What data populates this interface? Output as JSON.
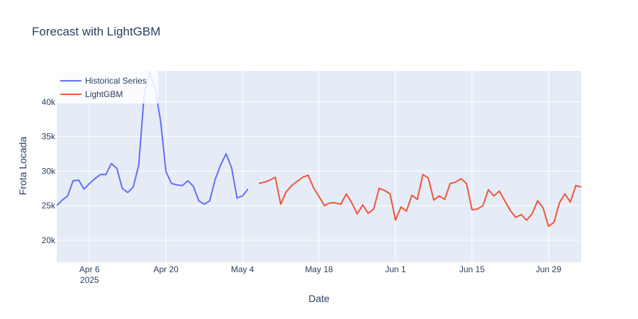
{
  "chart_data": {
    "type": "line",
    "title": "Forecast with LightGBM",
    "xlabel": "Date",
    "ylabel": "Frota Locada",
    "x_axis": {
      "type": "date",
      "range": [
        "2025-03-31",
        "2025-07-05"
      ]
    },
    "ylim": [
      16800,
      44500
    ],
    "x_ticks": [
      {
        "date": "2025-04-06",
        "label": "Apr 6",
        "sublabel": "2025"
      },
      {
        "date": "2025-04-20",
        "label": "Apr 20",
        "sublabel": ""
      },
      {
        "date": "2025-05-04",
        "label": "May 4",
        "sublabel": ""
      },
      {
        "date": "2025-05-18",
        "label": "May 18",
        "sublabel": ""
      },
      {
        "date": "2025-06-01",
        "label": "Jun 1",
        "sublabel": ""
      },
      {
        "date": "2025-06-15",
        "label": "Jun 15",
        "sublabel": ""
      },
      {
        "date": "2025-06-29",
        "label": "Jun 29",
        "sublabel": ""
      }
    ],
    "y_ticks": [
      {
        "value": 20000,
        "label": "20k"
      },
      {
        "value": 25000,
        "label": "25k"
      },
      {
        "value": 30000,
        "label": "30k"
      },
      {
        "value": 35000,
        "label": "35k"
      },
      {
        "value": 40000,
        "label": "40k"
      }
    ],
    "grid": true,
    "legend_position": "top-left",
    "colors": {
      "plot_bg": "#e5ecf6",
      "grid": "#ffffff",
      "historical": "#636efa",
      "forecast": "#ef553b"
    },
    "series": [
      {
        "name": "Historical Series",
        "color": "#636efa",
        "points": [
          [
            "2025-03-31",
            25000
          ],
          [
            "2025-04-01",
            25800
          ],
          [
            "2025-04-02",
            26400
          ],
          [
            "2025-04-03",
            28600
          ],
          [
            "2025-04-04",
            28700
          ],
          [
            "2025-04-05",
            27400
          ],
          [
            "2025-04-06",
            28200
          ],
          [
            "2025-04-07",
            28900
          ],
          [
            "2025-04-08",
            29500
          ],
          [
            "2025-04-09",
            29500
          ],
          [
            "2025-04-10",
            31100
          ],
          [
            "2025-04-11",
            30400
          ],
          [
            "2025-04-12",
            27500
          ],
          [
            "2025-04-13",
            26900
          ],
          [
            "2025-04-14",
            27700
          ],
          [
            "2025-04-15",
            30800
          ],
          [
            "2025-04-16",
            41000
          ],
          [
            "2025-04-17",
            44400
          ],
          [
            "2025-04-18",
            42000
          ],
          [
            "2025-04-19",
            37300
          ],
          [
            "2025-04-20",
            29900
          ],
          [
            "2025-04-21",
            28200
          ],
          [
            "2025-04-22",
            28000
          ],
          [
            "2025-04-23",
            27900
          ],
          [
            "2025-04-24",
            28600
          ],
          [
            "2025-04-25",
            27800
          ],
          [
            "2025-04-26",
            25700
          ],
          [
            "2025-04-27",
            25200
          ],
          [
            "2025-04-28",
            25700
          ],
          [
            "2025-04-29",
            28800
          ],
          [
            "2025-04-30",
            30900
          ],
          [
            "2025-05-01",
            32500
          ],
          [
            "2025-05-02",
            30500
          ],
          [
            "2025-05-03",
            26100
          ],
          [
            "2025-05-04",
            26400
          ],
          [
            "2025-05-05",
            27400
          ]
        ]
      },
      {
        "name": "LightGBM",
        "color": "#ef553b",
        "points": [
          [
            "2025-05-07",
            28200
          ],
          [
            "2025-05-08",
            28400
          ],
          [
            "2025-05-09",
            28700
          ],
          [
            "2025-05-10",
            29100
          ],
          [
            "2025-05-11",
            25200
          ],
          [
            "2025-05-12",
            27000
          ],
          [
            "2025-05-13",
            27900
          ],
          [
            "2025-05-14",
            28500
          ],
          [
            "2025-05-15",
            29100
          ],
          [
            "2025-05-16",
            29400
          ],
          [
            "2025-05-17",
            27600
          ],
          [
            "2025-05-18",
            26300
          ],
          [
            "2025-05-19",
            25000
          ],
          [
            "2025-05-20",
            25400
          ],
          [
            "2025-05-21",
            25400
          ],
          [
            "2025-05-22",
            25200
          ],
          [
            "2025-05-23",
            26700
          ],
          [
            "2025-05-24",
            25400
          ],
          [
            "2025-05-25",
            23800
          ],
          [
            "2025-05-26",
            25100
          ],
          [
            "2025-05-27",
            23900
          ],
          [
            "2025-05-28",
            24500
          ],
          [
            "2025-05-29",
            27500
          ],
          [
            "2025-05-30",
            27200
          ],
          [
            "2025-05-31",
            26700
          ],
          [
            "2025-06-01",
            22900
          ],
          [
            "2025-06-02",
            24800
          ],
          [
            "2025-06-03",
            24200
          ],
          [
            "2025-06-04",
            26500
          ],
          [
            "2025-06-05",
            25900
          ],
          [
            "2025-06-06",
            29500
          ],
          [
            "2025-06-07",
            29000
          ],
          [
            "2025-06-08",
            25800
          ],
          [
            "2025-06-09",
            26400
          ],
          [
            "2025-06-10",
            25900
          ],
          [
            "2025-06-11",
            28200
          ],
          [
            "2025-06-12",
            28400
          ],
          [
            "2025-06-13",
            28900
          ],
          [
            "2025-06-14",
            28200
          ],
          [
            "2025-06-15",
            24400
          ],
          [
            "2025-06-16",
            24500
          ],
          [
            "2025-06-17",
            25000
          ],
          [
            "2025-06-18",
            27300
          ],
          [
            "2025-06-19",
            26400
          ],
          [
            "2025-06-20",
            27100
          ],
          [
            "2025-06-21",
            25700
          ],
          [
            "2025-06-22",
            24300
          ],
          [
            "2025-06-23",
            23300
          ],
          [
            "2025-06-24",
            23700
          ],
          [
            "2025-06-25",
            22900
          ],
          [
            "2025-06-26",
            23800
          ],
          [
            "2025-06-27",
            25700
          ],
          [
            "2025-06-28",
            24700
          ],
          [
            "2025-06-29",
            22000
          ],
          [
            "2025-06-30",
            22600
          ],
          [
            "2025-07-01",
            25400
          ],
          [
            "2025-07-02",
            26700
          ],
          [
            "2025-07-03",
            25500
          ],
          [
            "2025-07-04",
            27900
          ],
          [
            "2025-07-05",
            27700
          ]
        ]
      }
    ]
  }
}
